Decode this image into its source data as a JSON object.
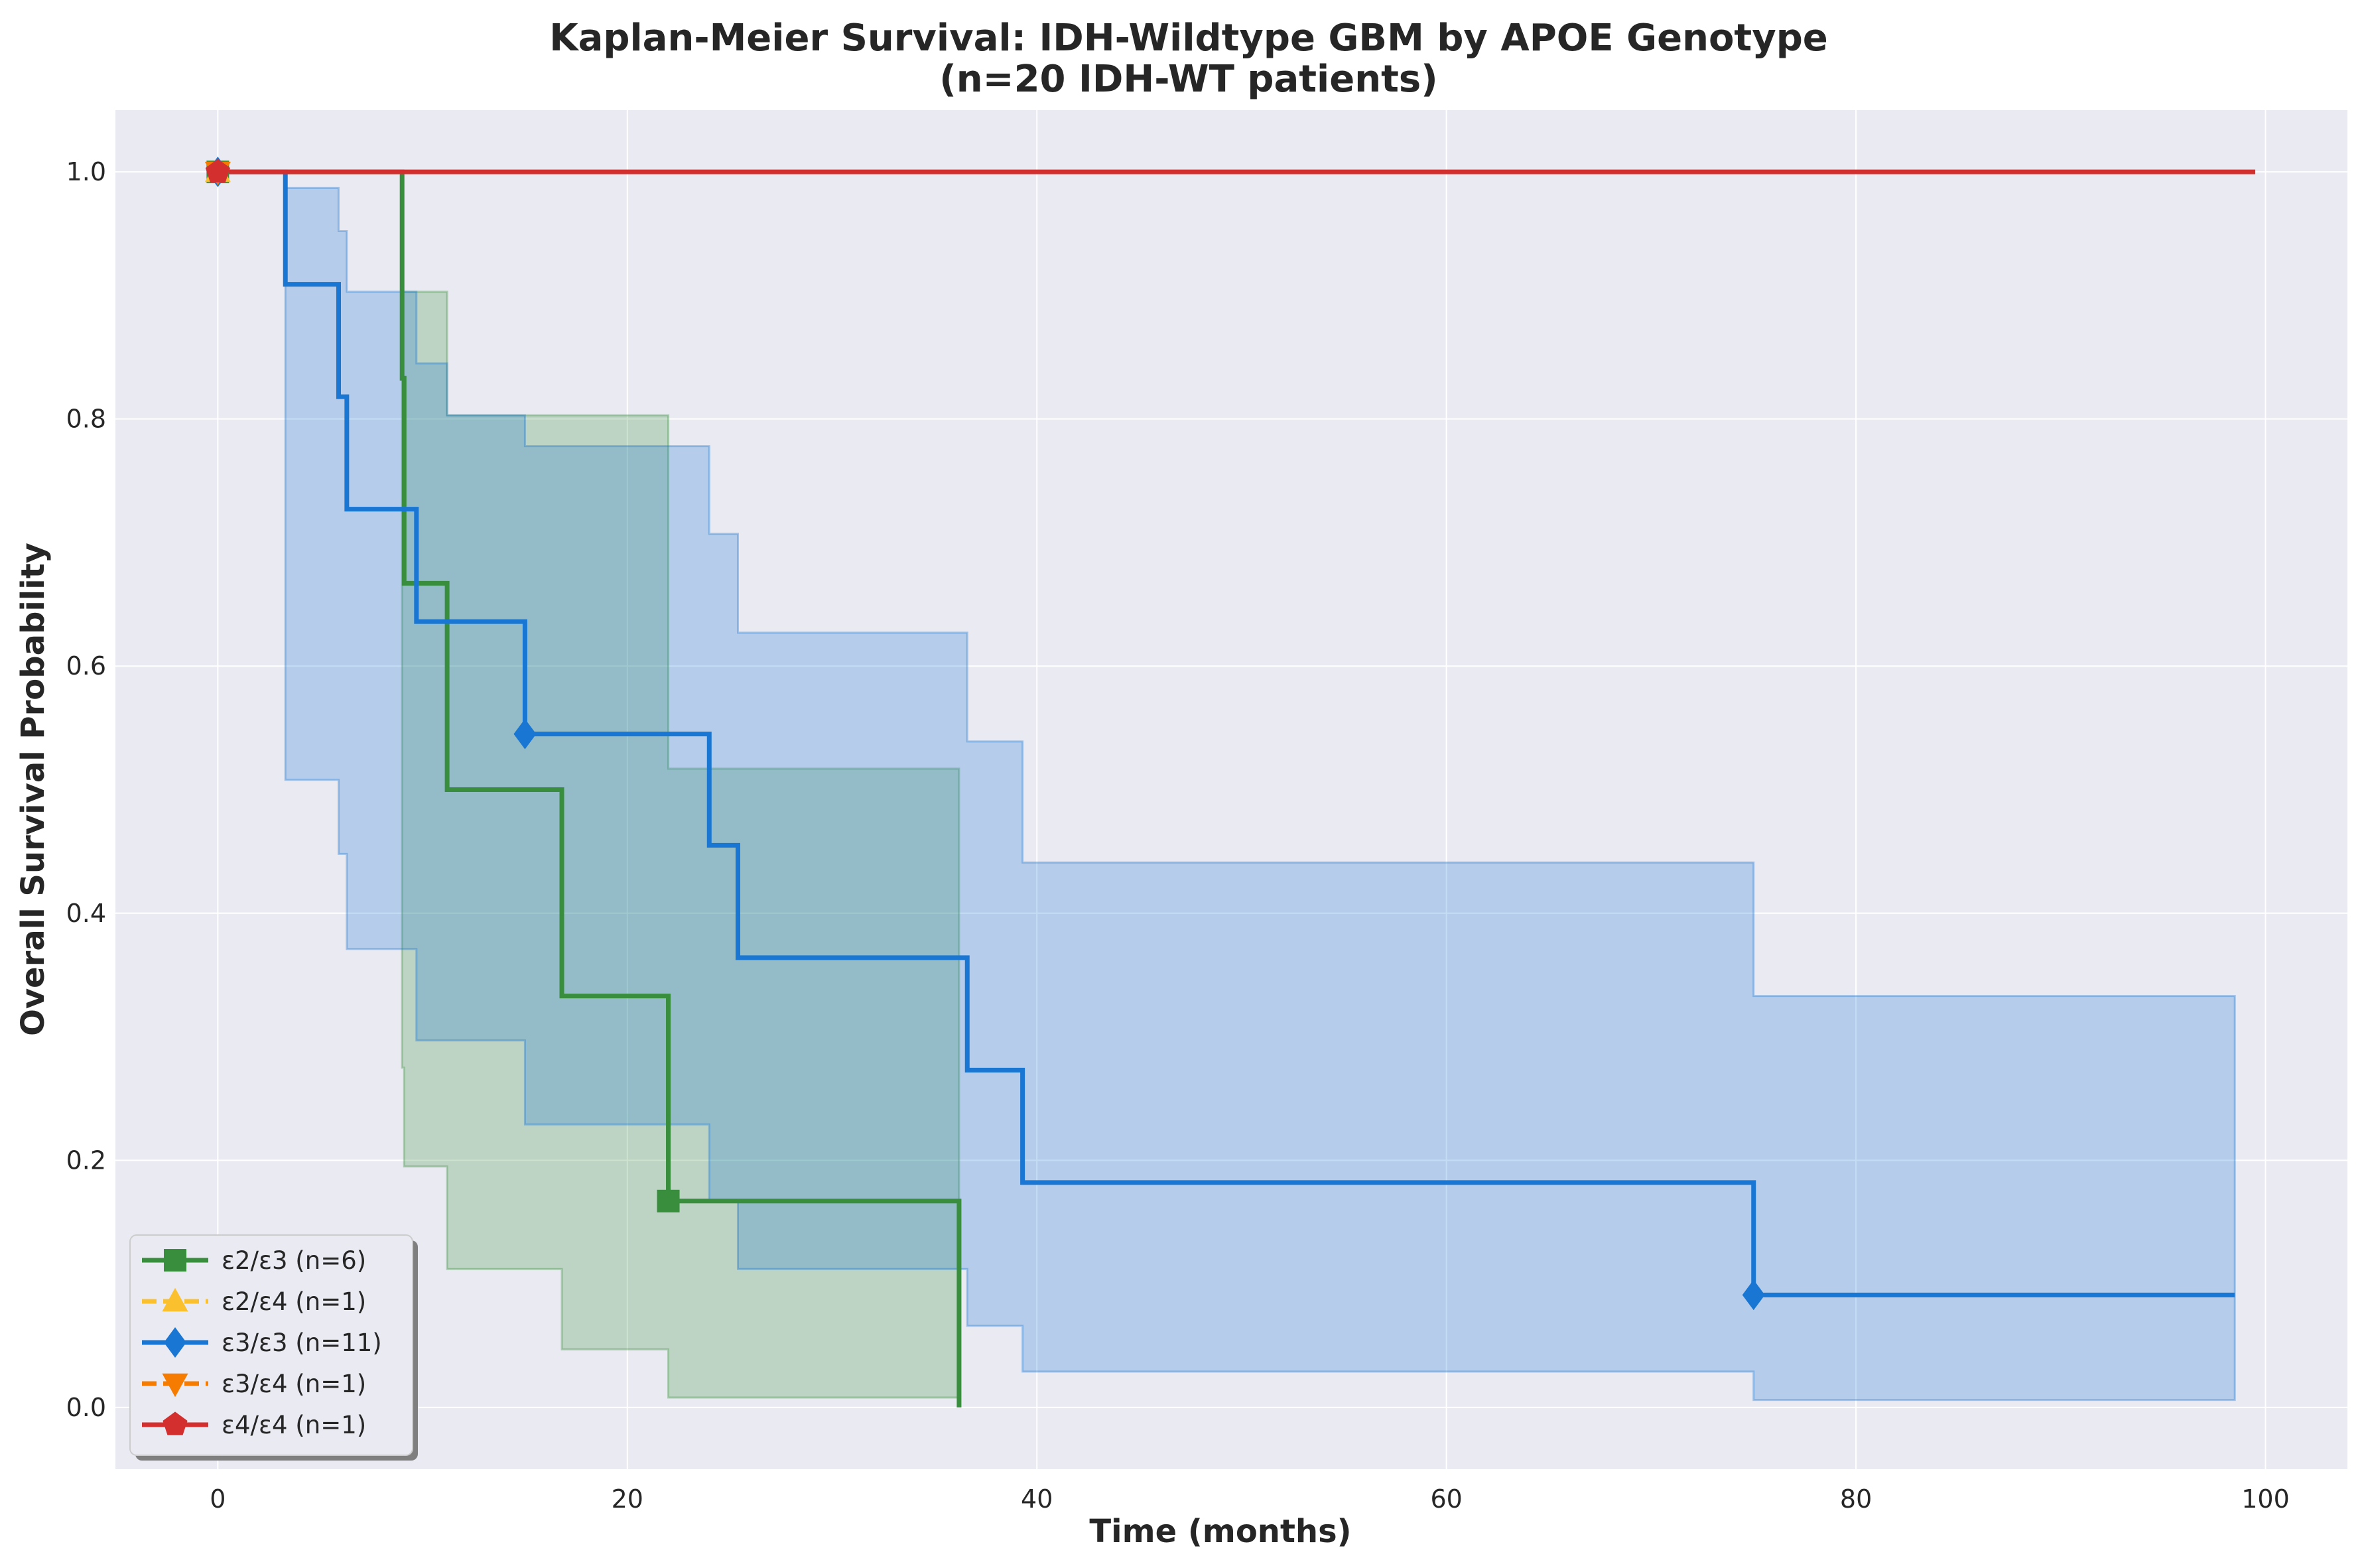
{
  "chart_data": {
    "type": "line",
    "title": "Kaplan-Meier Survival: IDH-Wildtype GBM by APOE Genotype",
    "subtitle": "(n=20 IDH-WT patients)",
    "xlabel": "Time (months)",
    "ylabel": "Overall Survival Probability",
    "xlim": [
      -5,
      104
    ],
    "ylim": [
      -0.05,
      1.05
    ],
    "xticks": [
      0,
      20,
      40,
      60,
      80,
      100
    ],
    "yticks": [
      0.0,
      0.2,
      0.4,
      0.6,
      0.8,
      1.0
    ],
    "grid": true,
    "legend_position": "lower-left",
    "series": [
      {
        "name": "ε2/ε3 (n=6)",
        "color": "#388e3c",
        "marker": "square",
        "steps": [
          [
            0,
            1.0
          ],
          [
            9,
            0.833
          ],
          [
            9.1,
            0.667
          ],
          [
            11.2,
            0.5
          ],
          [
            16.8,
            0.333
          ],
          [
            22,
            0.167
          ],
          [
            36.2,
            0.0
          ]
        ],
        "end_x": 36.2,
        "ci_lower": [
          [
            9,
            0.275
          ],
          [
            9.1,
            0.195
          ],
          [
            11.2,
            0.112
          ],
          [
            16.8,
            0.047
          ],
          [
            22,
            0.008
          ],
          [
            36.2,
            0.008
          ]
        ],
        "ci_upper": [
          [
            9,
            0.903
          ],
          [
            11.2,
            0.903
          ],
          [
            11.2,
            0.803
          ],
          [
            16.8,
            0.803
          ],
          [
            22,
            0.675
          ],
          [
            22,
            0.517
          ],
          [
            36.2,
            0.517
          ]
        ],
        "markers": [
          [
            0,
            1.0
          ],
          [
            22,
            0.167
          ]
        ]
      },
      {
        "name": "ε2/ε4 (n=1)",
        "color": "#fbc02d",
        "marker": "triangle-up",
        "steps": [
          [
            0,
            1.0
          ]
        ],
        "end_x": 0,
        "markers": [
          [
            0,
            1.0
          ]
        ]
      },
      {
        "name": "ε3/ε3 (n=11)",
        "color": "#1976d2",
        "marker": "diamond",
        "steps": [
          [
            0,
            1.0
          ],
          [
            3.3,
            0.909
          ],
          [
            5.9,
            0.818
          ],
          [
            6.3,
            0.727
          ],
          [
            9.7,
            0.636
          ],
          [
            15,
            0.545
          ],
          [
            24,
            0.455
          ],
          [
            25.4,
            0.364
          ],
          [
            36.6,
            0.273
          ],
          [
            39.3,
            0.182
          ],
          [
            75,
            0.091
          ]
        ],
        "end_x": 98.5,
        "ci_lower": [
          [
            3.3,
            0.508
          ],
          [
            5.9,
            0.448
          ],
          [
            6.3,
            0.371
          ],
          [
            9.7,
            0.297
          ],
          [
            15,
            0.229
          ],
          [
            24,
            0.167
          ],
          [
            25.4,
            0.112
          ],
          [
            36.6,
            0.066
          ],
          [
            39.3,
            0.029
          ],
          [
            75,
            0.006
          ],
          [
            98.5,
            0.006
          ]
        ],
        "ci_upper": [
          [
            3.3,
            0.987
          ],
          [
            5.9,
            0.952
          ],
          [
            6.3,
            0.903
          ],
          [
            9.7,
            0.845
          ],
          [
            11.2,
            0.803
          ],
          [
            15,
            0.778
          ],
          [
            24,
            0.707
          ],
          [
            25.4,
            0.627
          ],
          [
            36.6,
            0.539
          ],
          [
            39.3,
            0.441
          ],
          [
            75,
            0.333
          ],
          [
            98.5,
            0.333
          ]
        ],
        "markers": [
          [
            0,
            1.0
          ],
          [
            15,
            0.545
          ],
          [
            75,
            0.091
          ]
        ]
      },
      {
        "name": "ε3/ε4 (n=1)",
        "color": "#f57c00",
        "marker": "triangle-down",
        "steps": [
          [
            0,
            1.0
          ]
        ],
        "end_x": 0,
        "markers": [
          [
            0,
            1.0
          ]
        ]
      },
      {
        "name": "ε4/ε4 (n=1)",
        "color": "#d32f2f",
        "marker": "pentagon",
        "steps": [
          [
            0,
            1.0
          ]
        ],
        "end_x": 99.5,
        "markers": [
          [
            0,
            1.0
          ]
        ]
      }
    ]
  }
}
